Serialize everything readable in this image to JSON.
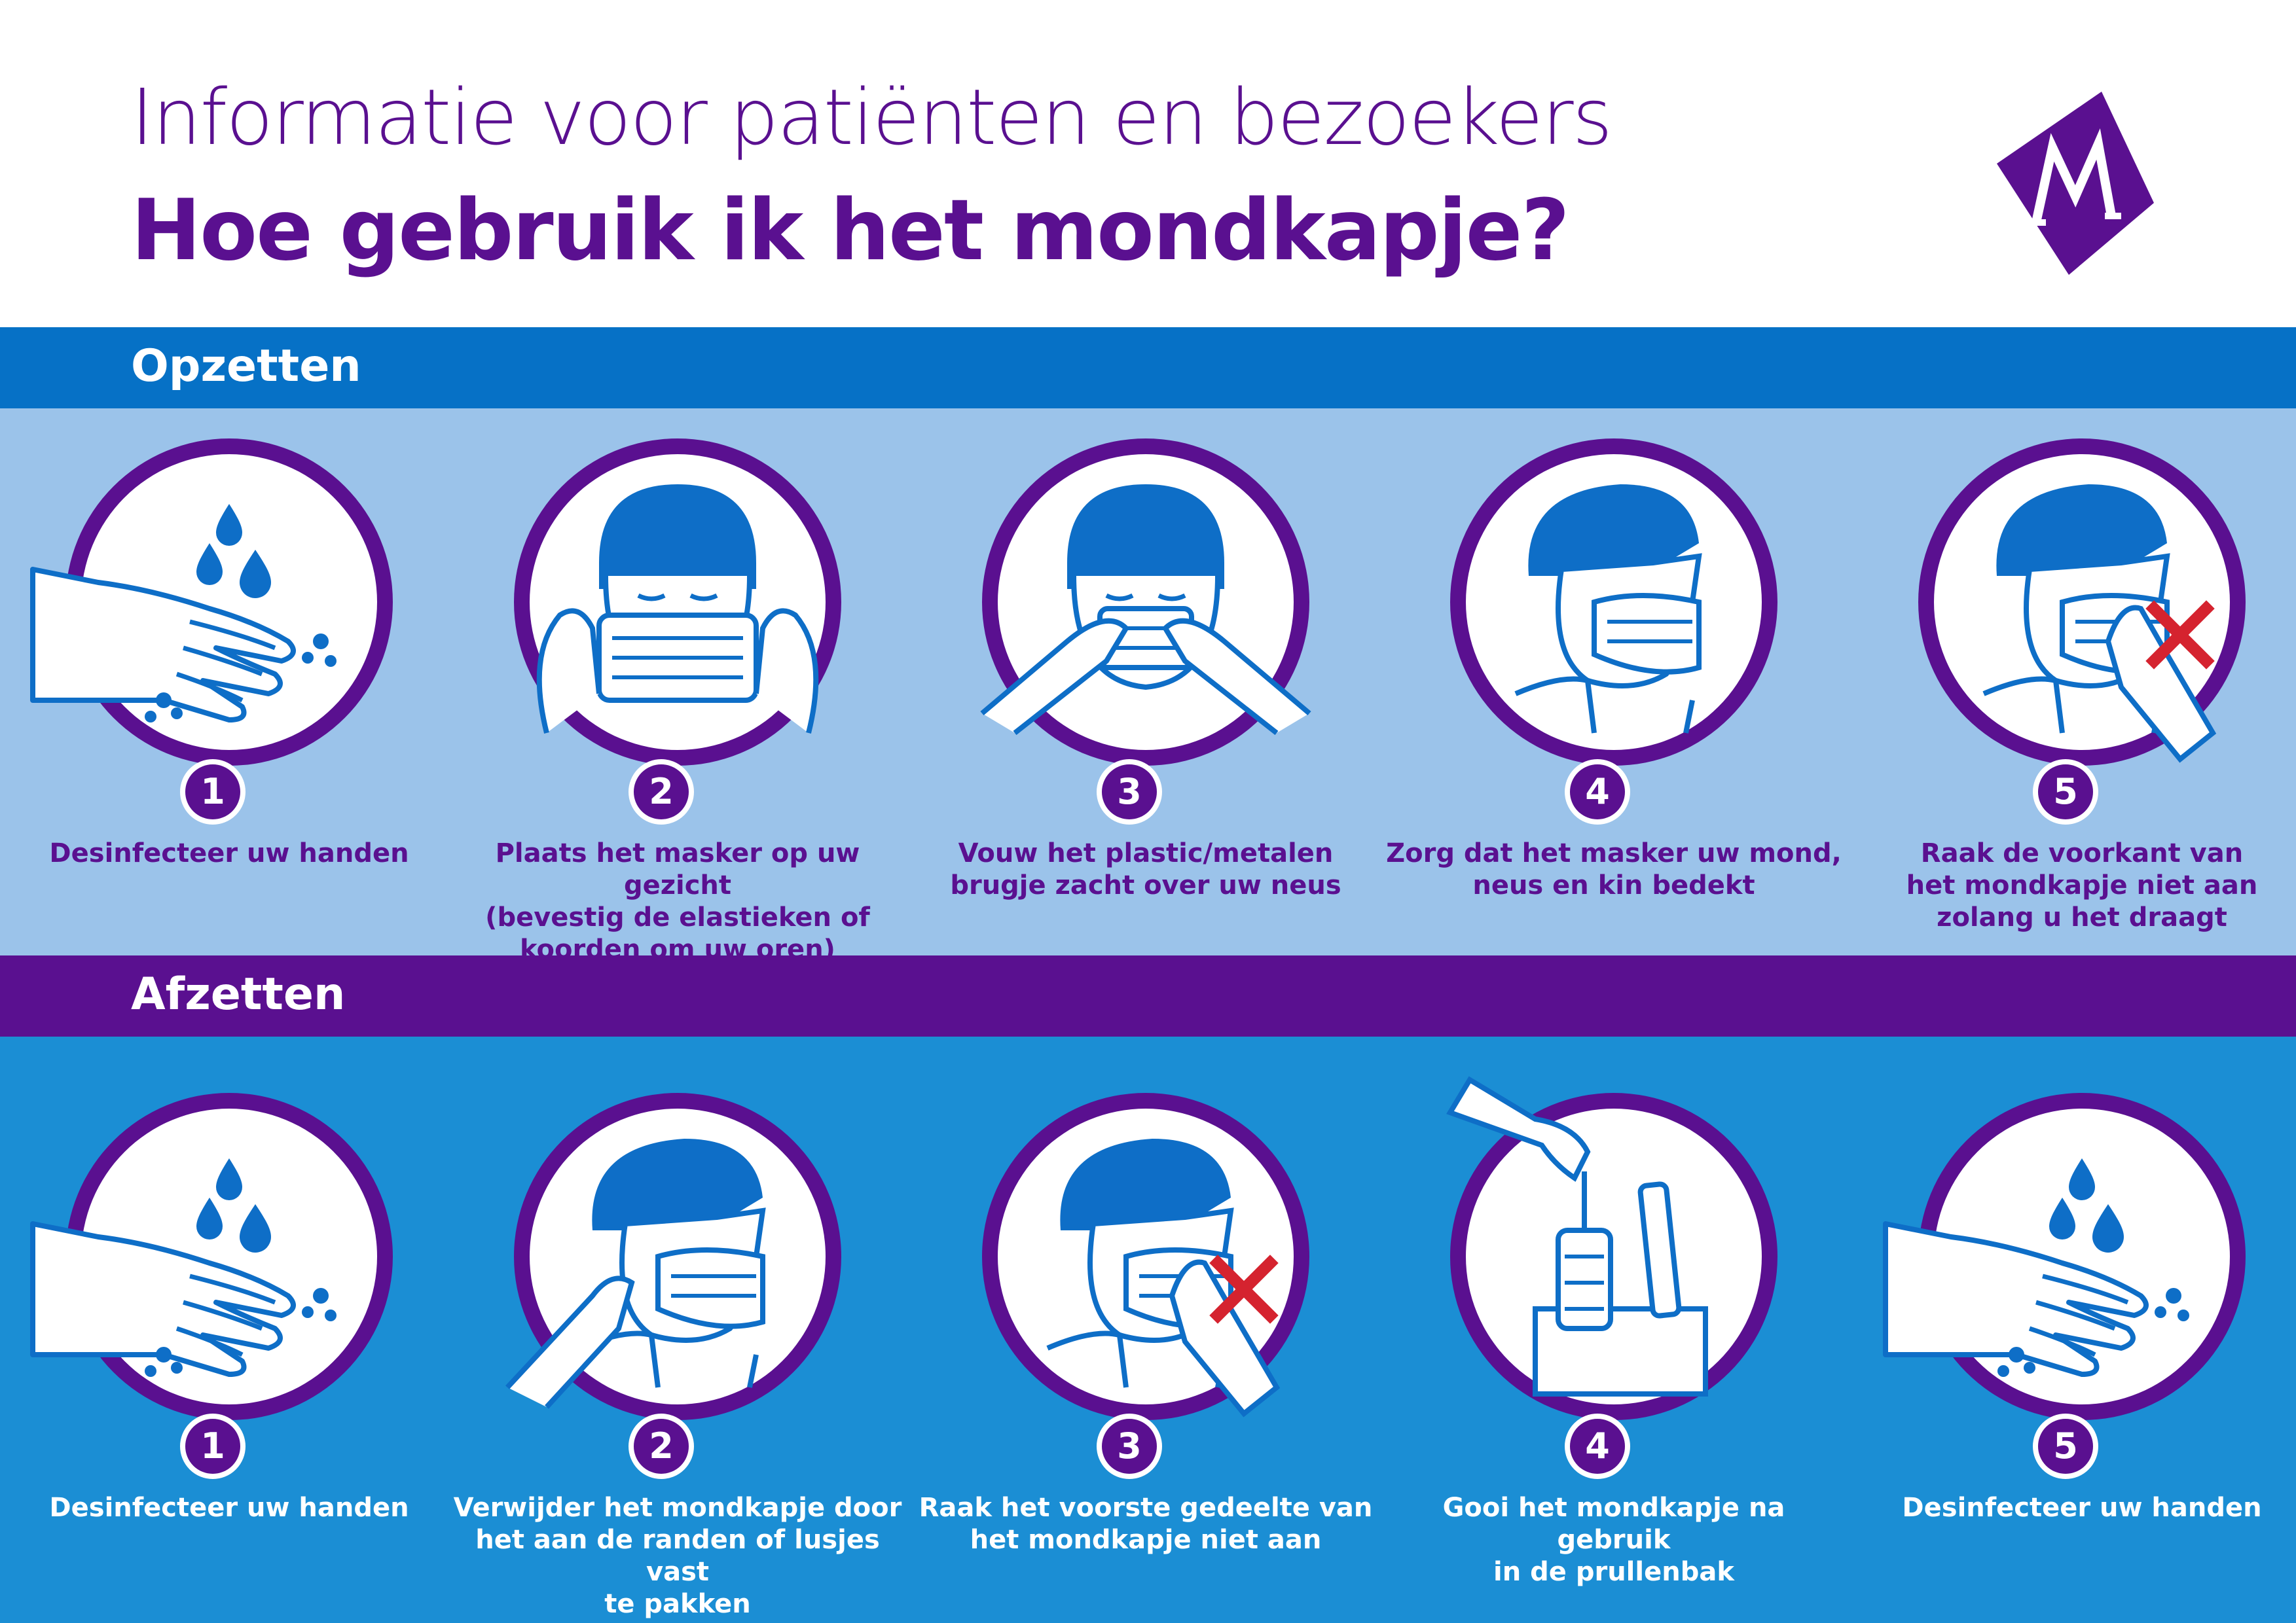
{
  "header": {
    "subtitle": "Informatie voor patiënten en bezoekers",
    "title": "Hoe gebruik ik het mondkapje?",
    "logo_icon": "m-logo-icon"
  },
  "colors": {
    "purple": "#5a1090",
    "blue_band": "#0671c6",
    "light_panel": "#9bc3ea",
    "dark_panel": "#1b8ed4",
    "illustration_blue": "#0e6ec7",
    "cross_red": "#d5232f"
  },
  "opzetten": {
    "label": "Opzetten",
    "steps": [
      {
        "number": "1",
        "caption": "Desinfecteer uw handen",
        "icon": "hand-wash-icon"
      },
      {
        "number": "2",
        "caption": "Plaats het masker op uw gezicht\n(bevestig de elastieken of\nkoorden om uw oren)",
        "icon": "place-mask-icon"
      },
      {
        "number": "3",
        "caption": "Vouw het plastic/metalen\nbrugje zacht over uw neus",
        "icon": "fold-nose-bridge-icon"
      },
      {
        "number": "4",
        "caption": "Zorg dat het masker uw mond,\nneus en kin bedekt",
        "icon": "mask-covered-icon"
      },
      {
        "number": "5",
        "caption": "Raak de voorkant van\nhet mondkapje niet aan\nzolang u het draagt",
        "icon": "no-touch-icon"
      }
    ]
  },
  "afzetten": {
    "label": "Afzetten",
    "steps": [
      {
        "number": "1",
        "caption": "Desinfecteer uw handen",
        "icon": "hand-wash-icon"
      },
      {
        "number": "2",
        "caption": "Verwijder het mondkapje door\nhet aan de randen of lusjes vast\nte pakken",
        "icon": "remove-mask-icon"
      },
      {
        "number": "3",
        "caption": "Raak het voorste gedeelte van\nhet mondkapje niet aan",
        "icon": "no-touch-icon"
      },
      {
        "number": "4",
        "caption": "Gooi het mondkapje na gebruik\nin de prullenbak",
        "icon": "trash-bin-icon"
      },
      {
        "number": "5",
        "caption": "Desinfecteer uw handen",
        "icon": "hand-wash-icon"
      }
    ]
  }
}
